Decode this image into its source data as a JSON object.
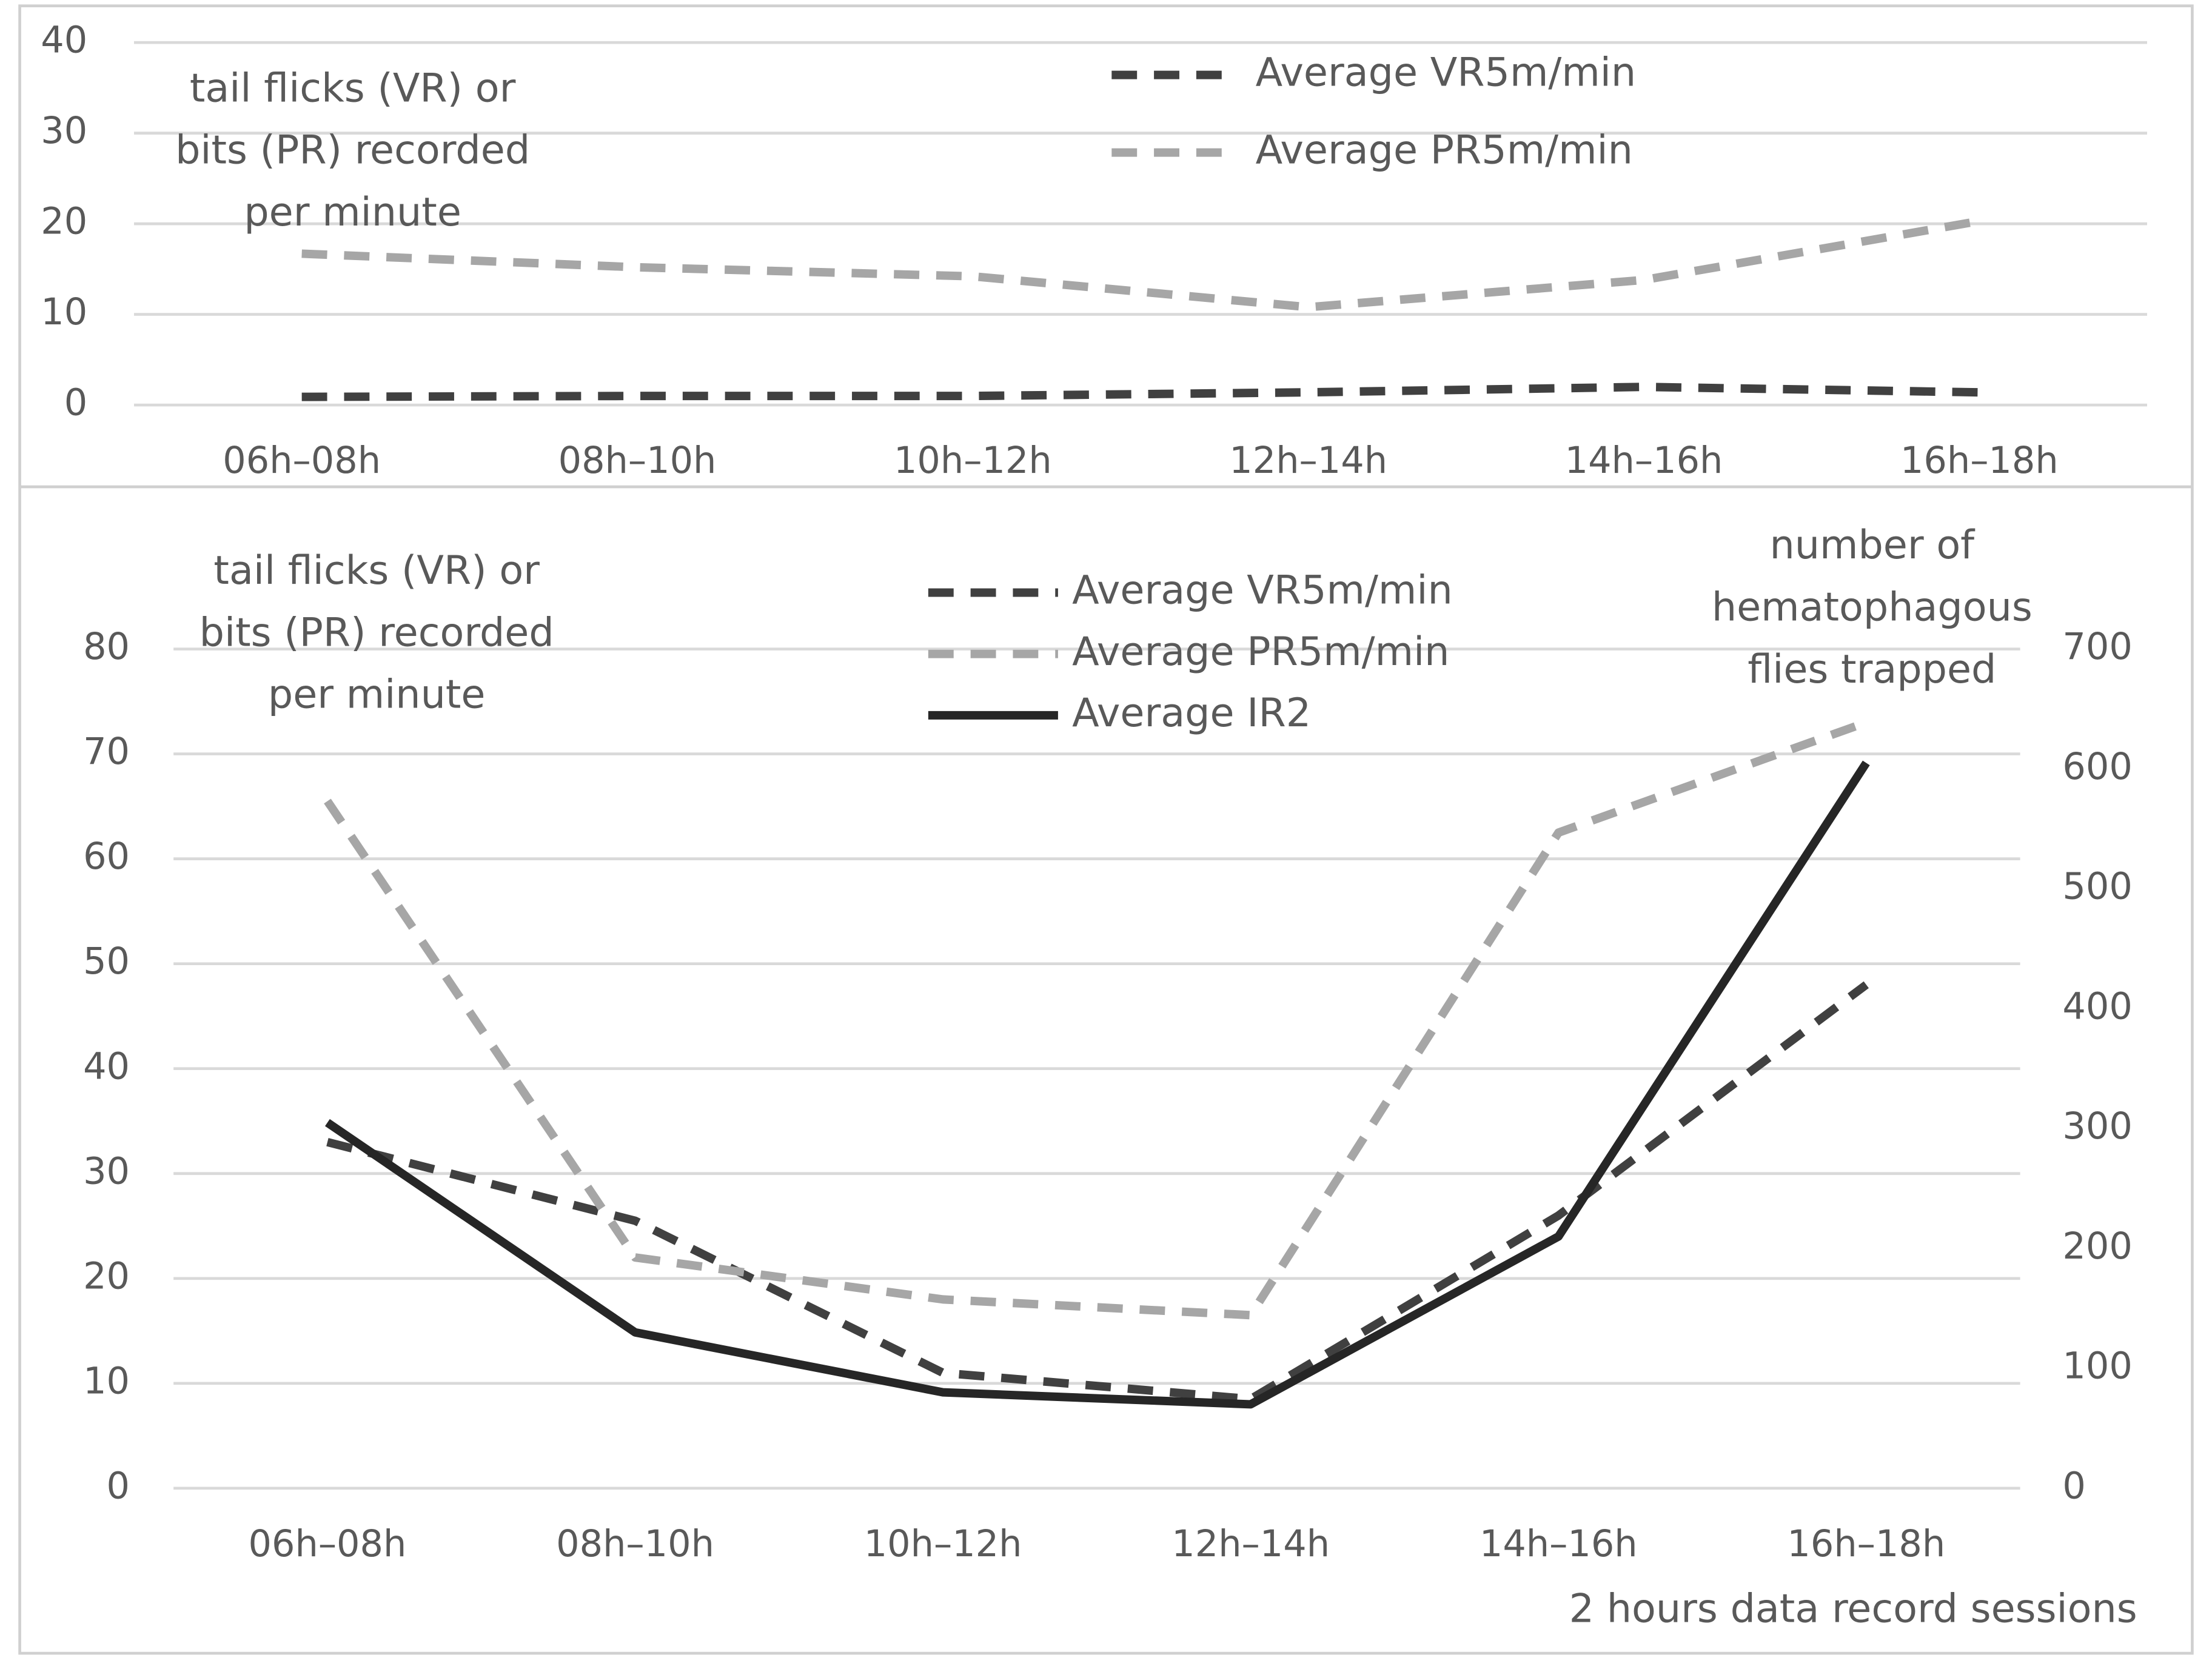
{
  "chart_data": [
    {
      "type": "line",
      "y_label": [
        "tail flicks (VR)  or",
        "bits (PR) recorded",
        "per minute"
      ],
      "categories": [
        "06h–08h",
        "08h–10h",
        "10h–12h",
        "12h–14h",
        "14h–16h",
        "16h–18h"
      ],
      "series": [
        {
          "name": "Average VR5m/min",
          "color": "#404040",
          "line_style": "dashed",
          "values": [
            0.9,
            1.0,
            1.0,
            1.4,
            2.0,
            1.4
          ]
        },
        {
          "name": "Average PR5m/min",
          "color": "#a6a6a6",
          "line_style": "dashed",
          "values": [
            16.7,
            15.2,
            14.2,
            10.8,
            13.8,
            20.3
          ]
        }
      ],
      "ylim": [
        0,
        40
      ],
      "yticks": [
        0,
        10,
        20,
        30,
        40
      ],
      "grid": true
    },
    {
      "type": "line",
      "y_label": [
        "tail flicks (VR) or",
        "bits (PR) recorded",
        "per minute"
      ],
      "y2_label": [
        "number of",
        "hematophagous",
        "flies trapped"
      ],
      "x_label": "2 hours data record sessions",
      "categories": [
        "06h–08h",
        "08h–10h",
        "10h–12h",
        "12h–14h",
        "14h–16h",
        "16h–18h"
      ],
      "series": [
        {
          "name": "Average VR5m/min",
          "color": "#404040",
          "line_style": "dashed",
          "values": [
            33,
            25.5,
            11,
            8.5,
            26,
            48
          ]
        },
        {
          "name": "Average PR5m/min",
          "color": "#a6a6a6",
          "line_style": "dashed",
          "values": [
            65.5,
            22,
            18,
            16.5,
            62.5,
            73
          ]
        },
        {
          "name": "Average IR2",
          "color": "#262626",
          "line_style": "solid",
          "axis": "y2",
          "values": [
            305,
            130,
            80,
            70,
            210,
            605
          ]
        }
      ],
      "ylim": [
        0,
        80
      ],
      "yticks": [
        0,
        10,
        20,
        30,
        40,
        50,
        60,
        70,
        80
      ],
      "y2lim": [
        0,
        700
      ],
      "y2ticks": [
        0,
        100,
        200,
        300,
        400,
        500,
        600,
        700
      ],
      "grid": true
    }
  ]
}
